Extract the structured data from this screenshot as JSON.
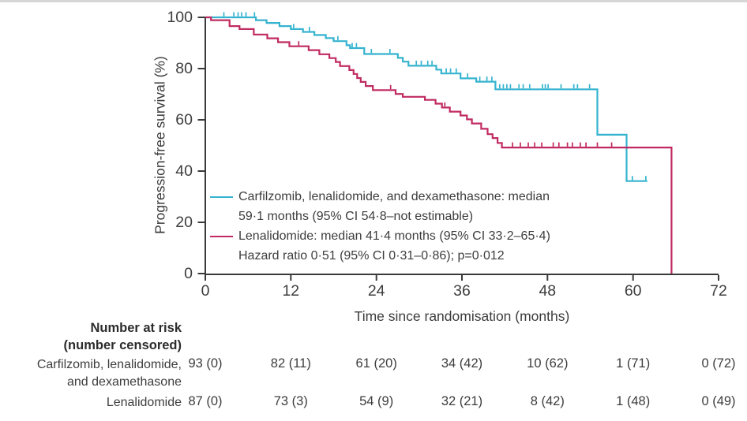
{
  "page": {
    "background": "#ffffff",
    "top_edge_color": "#d6d6d6",
    "text_color": "#3d3d3d"
  },
  "chart_data": {
    "type": "line",
    "subtype": "kaplan-meier-step",
    "title": "",
    "xlabel": "Time since randomisation (months)",
    "ylabel": "Progression-free survival (%)",
    "xlim": [
      0,
      72
    ],
    "ylim": [
      0,
      100
    ],
    "x_ticks": [
      0,
      12,
      24,
      36,
      48,
      60,
      72
    ],
    "y_ticks": [
      0,
      20,
      40,
      60,
      80,
      100
    ],
    "grid": false,
    "legend_position": "inside-lower-left",
    "axis_color": "#3a3a3a",
    "series": [
      {
        "name": "Carfilzomib, lenalidomide, and dexamethasone",
        "color": "#35b3cf",
        "median_months": "59·1",
        "ci_95": "54·8–not estimable",
        "steps": [
          [
            0,
            100
          ],
          [
            7.1,
            98.9
          ],
          [
            8.6,
            97.8
          ],
          [
            10.4,
            96.6
          ],
          [
            12,
            95.4
          ],
          [
            13.7,
            94.3
          ],
          [
            15.3,
            93.1
          ],
          [
            16.9,
            91.9
          ],
          [
            18,
            90.7
          ],
          [
            19.8,
            89.1
          ],
          [
            20.3,
            88
          ],
          [
            22.3,
            85.7
          ],
          [
            27,
            84.2
          ],
          [
            27.7,
            82.7
          ],
          [
            28.5,
            81.1
          ],
          [
            32.4,
            79.6
          ],
          [
            33.1,
            78.1
          ],
          [
            35.8,
            76.2
          ],
          [
            38,
            74.9
          ],
          [
            40.7,
            71.9
          ],
          [
            55,
            54.2
          ],
          [
            59.1,
            36.1
          ]
        ],
        "end_month": 62,
        "censor_marks": [
          [
            2.6,
            100
          ],
          [
            4,
            100
          ],
          [
            4.6,
            100
          ],
          [
            5.1,
            100
          ],
          [
            5.7,
            100
          ],
          [
            6.9,
            100
          ],
          [
            12.4,
            95.4
          ],
          [
            14.6,
            94.3
          ],
          [
            18.6,
            90.7
          ],
          [
            20.6,
            88
          ],
          [
            21.2,
            88
          ],
          [
            23.3,
            85.7
          ],
          [
            25.9,
            85.7
          ],
          [
            29.6,
            81.1
          ],
          [
            30.3,
            81.1
          ],
          [
            31.2,
            81.1
          ],
          [
            31.8,
            81.1
          ],
          [
            33.8,
            78.1
          ],
          [
            34.4,
            78.1
          ],
          [
            35.2,
            78.1
          ],
          [
            36.8,
            76.2
          ],
          [
            38.5,
            74.9
          ],
          [
            39.5,
            74.9
          ],
          [
            40.2,
            74.9
          ],
          [
            41.3,
            71.9
          ],
          [
            41.8,
            71.9
          ],
          [
            42.3,
            71.9
          ],
          [
            42.8,
            71.9
          ],
          [
            44,
            71.9
          ],
          [
            44.6,
            71.9
          ],
          [
            45.5,
            71.9
          ],
          [
            47.3,
            71.9
          ],
          [
            47.7,
            71.9
          ],
          [
            48.1,
            71.9
          ],
          [
            49.9,
            71.9
          ],
          [
            51.7,
            71.9
          ],
          [
            52.2,
            71.9
          ],
          [
            53.9,
            71.9
          ],
          [
            59.9,
            36.1
          ],
          [
            61.8,
            36.1
          ]
        ]
      },
      {
        "name": "Lenalidomide",
        "color": "#c02a60",
        "median_months": "41·4",
        "ci_95": "33·2–65·4",
        "steps": [
          [
            0,
            100
          ],
          [
            0.8,
            98.9
          ],
          [
            3.4,
            96.6
          ],
          [
            4.8,
            95.4
          ],
          [
            6.8,
            93.3
          ],
          [
            8.7,
            91.8
          ],
          [
            10.2,
            90.3
          ],
          [
            11.8,
            88.7
          ],
          [
            14.5,
            87.2
          ],
          [
            16,
            85.6
          ],
          [
            17.4,
            84.1
          ],
          [
            18.3,
            82.6
          ],
          [
            18.9,
            81
          ],
          [
            20.2,
            79.4
          ],
          [
            20.8,
            77.9
          ],
          [
            21.3,
            76.3
          ],
          [
            21.8,
            74.8
          ],
          [
            22.5,
            73.2
          ],
          [
            23.5,
            71.6
          ],
          [
            26.7,
            70.1
          ],
          [
            27.7,
            69
          ],
          [
            30.8,
            67.8
          ],
          [
            32.3,
            66.3
          ],
          [
            33.2,
            64.8
          ],
          [
            34.3,
            63.2
          ],
          [
            35.8,
            61.7
          ],
          [
            36.7,
            60.2
          ],
          [
            37.4,
            58.6
          ],
          [
            38.7,
            56.5
          ],
          [
            39.6,
            54.4
          ],
          [
            40.3,
            52.9
          ],
          [
            41,
            51
          ],
          [
            41.6,
            49.2
          ],
          [
            65.4,
            0
          ]
        ],
        "end_month": 65.4,
        "censor_marks": [
          [
            13.1,
            88.7
          ],
          [
            26,
            71.6
          ],
          [
            33.6,
            64.8
          ],
          [
            43.1,
            49.2
          ],
          [
            44.2,
            49.2
          ],
          [
            45.3,
            49.2
          ],
          [
            46.2,
            49.2
          ],
          [
            47.2,
            49.2
          ],
          [
            48.8,
            49.2
          ],
          [
            49.6,
            49.2
          ],
          [
            50.8,
            49.2
          ],
          [
            51.5,
            49.2
          ],
          [
            52.6,
            49.2
          ],
          [
            53.4,
            49.2
          ],
          [
            55,
            49.2
          ],
          [
            57,
            49.2
          ]
        ]
      }
    ],
    "legend": {
      "entries": [
        {
          "color": "#35b3cf",
          "lines": [
            "Carfilzomib, lenalidomide, and dexamethasone: median",
            "59·1 months (95% CI 54·8–not estimable)"
          ]
        },
        {
          "color": "#c02a60",
          "lines": [
            "Lenalidomide: median 41·4 months (95% CI 33·2–65·4)",
            "Hazard ratio 0·51 (95% CI 0·31–0·86); p=0·012"
          ]
        }
      ]
    }
  },
  "risk_table": {
    "header_lines": [
      "Number at risk",
      "(number censored)"
    ],
    "rows": [
      {
        "label_lines": [
          "Carfilzomib, lenalidomide,",
          "and dexamethasone"
        ],
        "values": [
          "93 (0)",
          "82 (11)",
          "61 (20)",
          "34 (42)",
          "10 (62)",
          "1 (71)",
          "0 (72)"
        ]
      },
      {
        "label_lines": [
          "Lenalidomide"
        ],
        "values": [
          "87 (0)",
          "73 (3)",
          "54 (9)",
          "32 (21)",
          "8 (42)",
          "1 (48)",
          "0 (49)"
        ]
      }
    ]
  }
}
